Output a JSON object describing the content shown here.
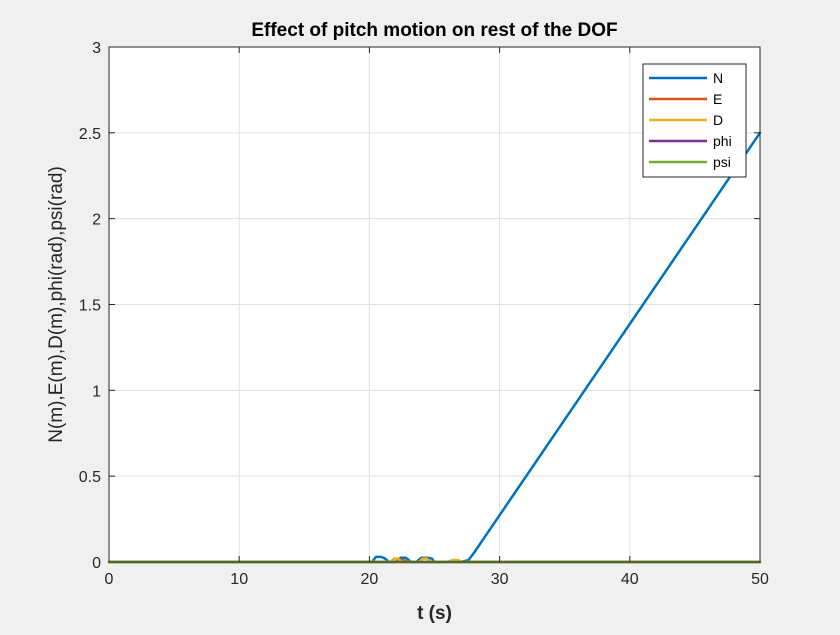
{
  "chart_data": {
    "type": "line",
    "title": "Effect of pitch motion on rest of the DOF",
    "xlabel": "t (s)",
    "ylabel": "N(m),E(m),D(m),phi(rad),psi(rad)",
    "xlim": [
      0,
      50
    ],
    "ylim": [
      0,
      3
    ],
    "xticks": [
      0,
      10,
      20,
      30,
      40,
      50
    ],
    "yticks": [
      0,
      0.5,
      1,
      1.5,
      2,
      2.5,
      3
    ],
    "xtick_labels": [
      "0",
      "10",
      "20",
      "30",
      "40",
      "50"
    ],
    "ytick_labels": [
      "0",
      "0.5",
      "1",
      "1.5",
      "2",
      "2.5",
      "3"
    ],
    "grid": true,
    "legend_position": "top-right",
    "series": [
      {
        "name": "N",
        "color": "#0072BD",
        "x": [
          0,
          20.2,
          20.5,
          20.9,
          21.2,
          21.5,
          22.0,
          22.4,
          22.8,
          23.2,
          23.6,
          24.0,
          24.4,
          24.8,
          25.0,
          25.5,
          26.0,
          26.5,
          27.0,
          27.6,
          28.0,
          50
        ],
        "y": [
          0,
          0,
          0.03,
          0.03,
          0.02,
          0,
          0,
          0.025,
          0.025,
          0,
          0,
          0.025,
          0.025,
          0.02,
          0,
          0,
          0,
          0,
          0,
          0.01,
          0.05,
          2.5
        ]
      },
      {
        "name": "E",
        "color": "#D95319",
        "x": [
          0,
          22.0,
          22.3,
          22.6,
          23.0,
          26.0,
          26.3,
          26.6,
          27.0,
          50
        ],
        "y": [
          0,
          0,
          0.012,
          0.012,
          0,
          0,
          0.008,
          0.008,
          0,
          0
        ]
      },
      {
        "name": "D",
        "color": "#EDB120",
        "x": [
          0,
          21.6,
          21.9,
          22.2,
          22.5,
          23.8,
          24.1,
          24.4,
          24.7,
          26.1,
          26.4,
          26.8,
          27.1,
          50
        ],
        "y": [
          0,
          0,
          0.02,
          0.02,
          0,
          0,
          0.02,
          0.02,
          0,
          0,
          0.012,
          0.012,
          0,
          0
        ]
      },
      {
        "name": "phi",
        "color": "#7E2F8E",
        "x": [
          0,
          50
        ],
        "y": [
          0,
          0
        ]
      },
      {
        "name": "psi",
        "color": "#77AC30",
        "x": [
          0,
          50
        ],
        "y": [
          0,
          0
        ]
      }
    ]
  }
}
